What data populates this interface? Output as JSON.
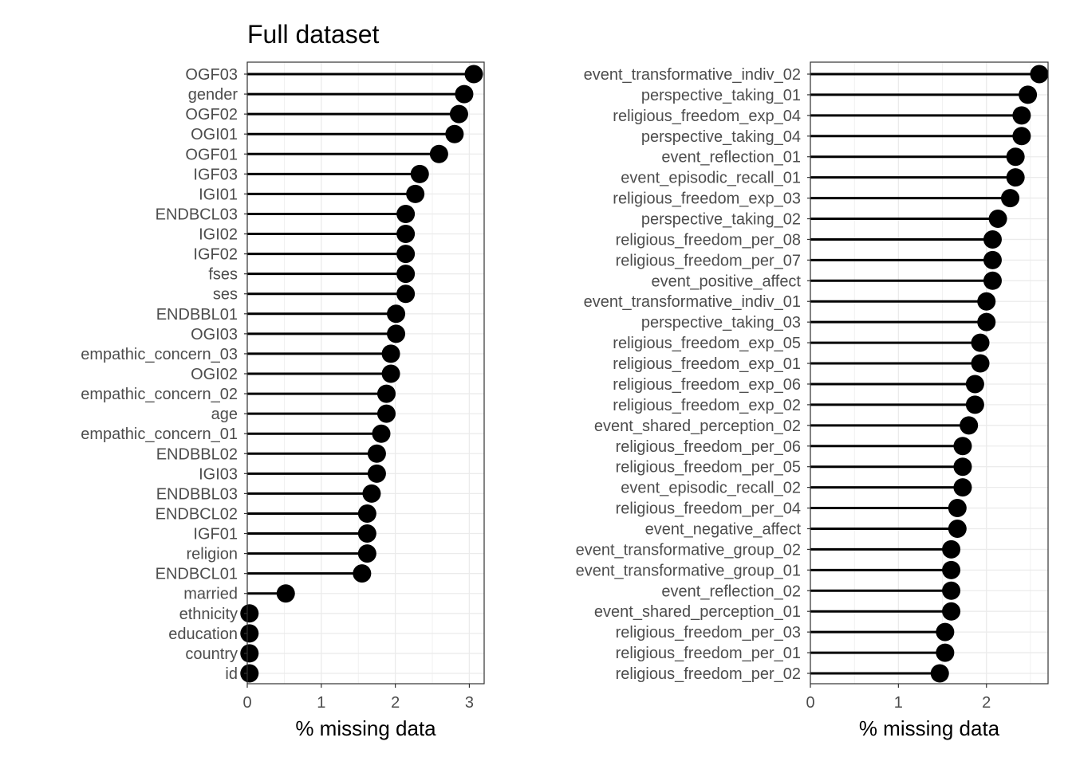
{
  "chart_data": [
    {
      "type": "lollipop",
      "title": "Full dataset",
      "xlabel": "% missing data",
      "ylabel": "",
      "xlim": [
        0,
        3.2
      ],
      "xticks": [
        0,
        1,
        2,
        3
      ],
      "grid": true,
      "categories": [
        "OGF03",
        "gender",
        "OGF02",
        "OGI01",
        "OGF01",
        "IGF03",
        "IGI01",
        "ENDBCL03",
        "IGI02",
        "IGF02",
        "fses",
        "ses",
        "ENDBBL01",
        "OGI03",
        "empathic_concern_03",
        "OGI02",
        "empathic_concern_02",
        "age",
        "empathic_concern_01",
        "ENDBBL02",
        "IGI03",
        "ENDBBL03",
        "ENDBCL02",
        "IGF01",
        "religion",
        "ENDBCL01",
        "married",
        "ethnicity",
        "education",
        "country",
        "id"
      ],
      "values": [
        3.06,
        2.93,
        2.86,
        2.8,
        2.59,
        2.33,
        2.27,
        2.14,
        2.14,
        2.14,
        2.14,
        2.14,
        2.01,
        2.01,
        1.94,
        1.94,
        1.88,
        1.88,
        1.81,
        1.75,
        1.75,
        1.68,
        1.62,
        1.62,
        1.62,
        1.55,
        0.52,
        0.03,
        0.03,
        0.03,
        0.03
      ]
    },
    {
      "type": "lollipop",
      "title": "",
      "xlabel": "% missing data",
      "ylabel": "",
      "xlim": [
        0,
        2.7
      ],
      "xticks": [
        0,
        1,
        2
      ],
      "grid": true,
      "categories": [
        "event_transformative_indiv_02",
        "perspective_taking_01",
        "religious_freedom_exp_04",
        "perspective_taking_04",
        "event_reflection_01",
        "event_episodic_recall_01",
        "religious_freedom_exp_03",
        "perspective_taking_02",
        "religious_freedom_per_08",
        "religious_freedom_per_07",
        "event_positive_affect",
        "event_transformative_indiv_01",
        "perspective_taking_03",
        "religious_freedom_exp_05",
        "religious_freedom_exp_01",
        "religious_freedom_exp_06",
        "religious_freedom_exp_02",
        "event_shared_perception_02",
        "religious_freedom_per_06",
        "religious_freedom_per_05",
        "event_episodic_recall_02",
        "religious_freedom_per_04",
        "event_negative_affect",
        "event_transformative_group_02",
        "event_transformative_group_01",
        "event_reflection_02",
        "event_shared_perception_01",
        "religious_freedom_per_03",
        "religious_freedom_per_01",
        "religious_freedom_per_02"
      ],
      "values": [
        2.6,
        2.47,
        2.4,
        2.4,
        2.33,
        2.33,
        2.27,
        2.13,
        2.07,
        2.07,
        2.07,
        2.0,
        2.0,
        1.93,
        1.93,
        1.87,
        1.87,
        1.8,
        1.73,
        1.73,
        1.73,
        1.67,
        1.67,
        1.6,
        1.6,
        1.6,
        1.6,
        1.53,
        1.53,
        1.47
      ]
    }
  ]
}
